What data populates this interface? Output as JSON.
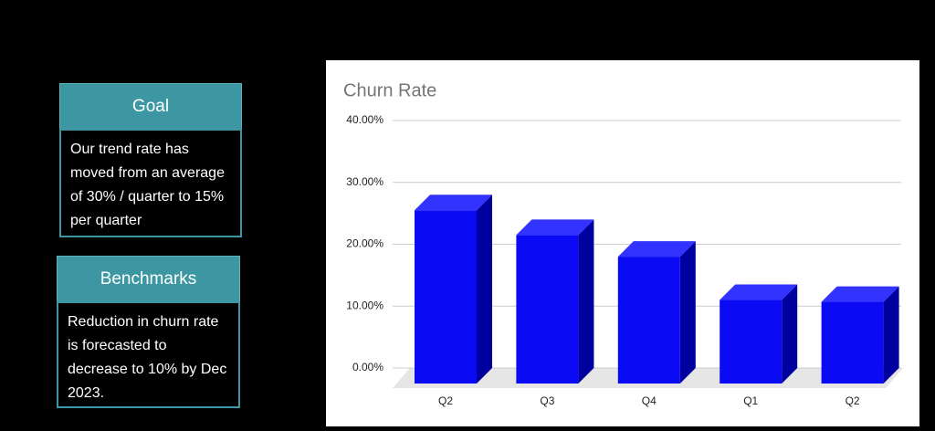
{
  "panels": [
    {
      "title": "Goal",
      "text": "Our trend rate has moved from an average of 30% / quarter to 15% per quarter"
    },
    {
      "title": "Benchmarks",
      "text": "Reduction in churn rate is forecasted to decrease to 10% by Dec 2023."
    }
  ],
  "chart_data": {
    "type": "bar3d",
    "title": "Churn Rate",
    "categories": [
      "Q2",
      "Q3",
      "Q4",
      "Q1",
      "Q2"
    ],
    "values": [
      28,
      24,
      20.5,
      13.5,
      13.2
    ],
    "color": "#0a0af5",
    "ylim": [
      0,
      40
    ],
    "yticks": [
      {
        "value": 0,
        "label": "0.00%"
      },
      {
        "value": 10,
        "label": "10.00%"
      },
      {
        "value": 20,
        "label": "20.00%"
      },
      {
        "value": 30,
        "label": "30.00%"
      },
      {
        "value": 40,
        "label": "40.00%"
      }
    ],
    "grid": true
  }
}
